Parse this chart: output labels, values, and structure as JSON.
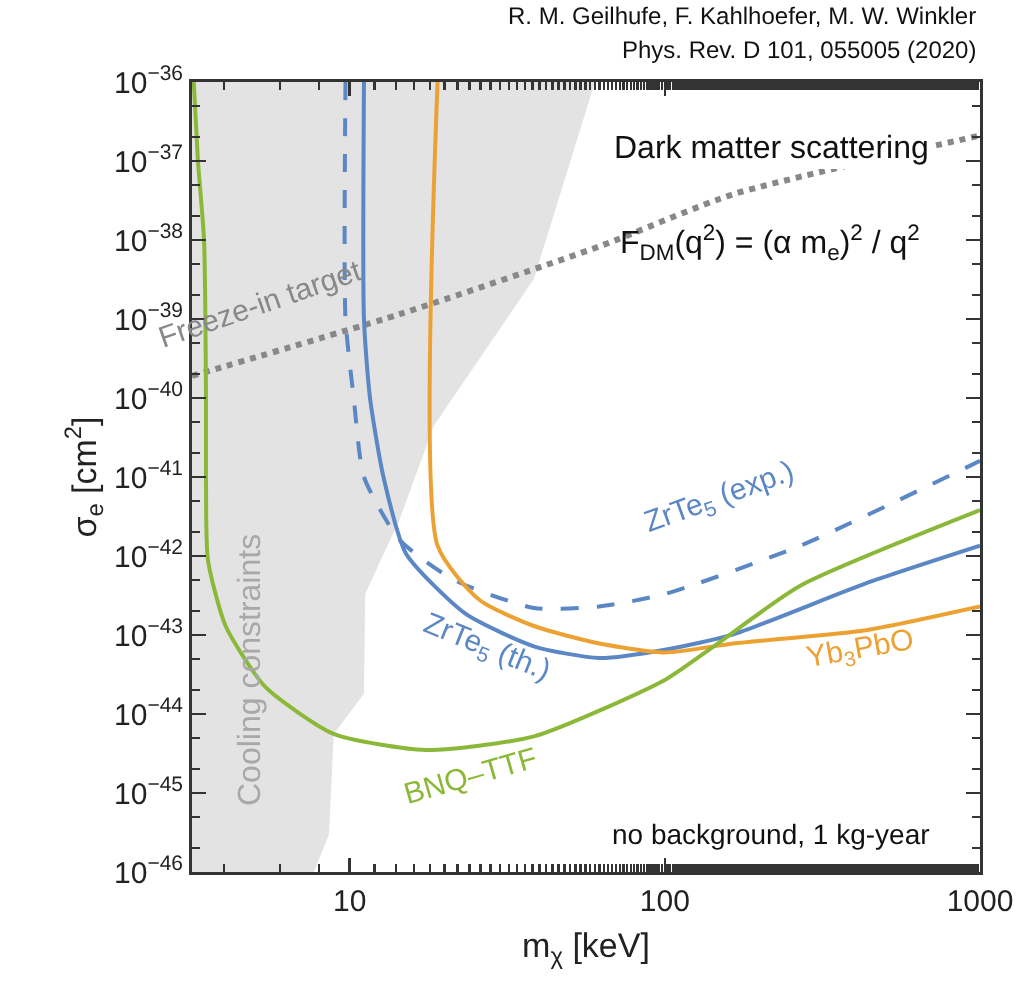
{
  "chart_data": {
    "type": "line",
    "xlabel": "m$_{χ}$ [keV]",
    "ylabel": "σ$_{e}$ [cm$^{2}$]",
    "annotations": [
      "R. M. Geilhufe, F. Kahlhoefer, M. W. Winkler",
      "Phys. Rev. D 101, 055005 (2020)",
      "Dark matter scattering",
      "F$_{DM}$(q$^{2}$) = (α m$_{e}$)$^{2}$ / q$^{2}$",
      "no background, 1 kg-year"
    ],
    "log": "xy",
    "grid": false,
    "legend": false,
    "marker": "none",
    "xlim": [
      3.16,
      1000
    ],
    "xticks": [
      10,
      100,
      1000
    ],
    "ylim": [
      1e-46,
      1e-36
    ],
    "yticks": [
      {
        "value": 1e-46,
        "label": "10$^{−46}$"
      },
      {
        "value": 1e-45,
        "label": "10$^{−45}$"
      },
      {
        "value": 1e-44,
        "label": "10$^{−44}$"
      },
      {
        "value": 1e-43,
        "label": "10$^{−43}$"
      },
      {
        "value": 1e-42,
        "label": "10$^{−42}$"
      },
      {
        "value": 1e-41,
        "label": "10$^{−41}$"
      },
      {
        "value": 1e-40,
        "label": "10$^{−40}$"
      },
      {
        "value": 1e-39,
        "label": "10$^{−39}$"
      },
      {
        "value": 1e-38,
        "label": "10$^{−38}$"
      },
      {
        "value": 1e-37,
        "label": "10$^{−37}$"
      },
      {
        "value": 1e-36,
        "label": "10$^{−36}$"
      }
    ],
    "series": [
      {
        "name": "Cooling constraints",
        "type": "area",
        "color": "#e3e3e3",
        "x": [
          60,
          38.4,
          18.5,
          14.4,
          11.2,
          11.1,
          8.9,
          8.6,
          7.7
        ],
        "values": [
          1e-36,
          3.2e-39,
          4.5e-41,
          2.9e-42,
          3.3e-43,
          1.8e-44,
          5.6e-45,
          3e-46,
          1e-46
        ]
      },
      {
        "name": "Freeze-in target",
        "color": "#888888",
        "line_style": "dotted",
        "x": [
          3.16,
          14.4,
          62,
          165,
          1000
        ],
        "values": [
          1.9e-40,
          1.15e-39,
          8.3e-39,
          3.8e-38,
          2.1e-37
        ]
      },
      {
        "name": "ZrTe$_{5}$ (exp.)",
        "color": "#5b87c5",
        "line_style": "dashed",
        "x": [
          9.7,
          9.7,
          10.3,
          11.1,
          14.4,
          21.4,
          38.4,
          62,
          100,
          269,
          1000
        ],
        "values": [
          1e-36,
          1e-39,
          1e-40,
          1e-41,
          1.6e-42,
          5e-43,
          2.2e-43,
          2.3e-43,
          3.3e-43,
          1.35e-42,
          1.6e-41
        ]
      },
      {
        "name": "ZrTe$_{5}$ (th.)",
        "color": "#5b87c5",
        "line_style": "solid",
        "x": [
          11.1,
          11.1,
          11.6,
          12.8,
          15.1,
          23.3,
          38.4,
          62,
          100,
          165,
          434,
          1000
        ],
        "values": [
          1e-36,
          1e-39,
          1e-40,
          1e-41,
          1.07e-42,
          1.86e-43,
          7.2e-44,
          5.1e-44,
          6.5e-44,
          1.02e-43,
          4.5e-43,
          1.35e-42
        ]
      },
      {
        "name": "Yb$_{3}$PbO",
        "color": "#eca133",
        "line_style": "solid",
        "x": [
          19,
          19,
          25.9,
          38.4,
          62,
          100,
          165,
          434,
          1000
        ],
        "values": [
          1e-36,
          1.35e-42,
          2.75e-43,
          1.3e-43,
          7.8e-44,
          6e-44,
          7.8e-44,
          1.15e-43,
          2.3e-43
        ]
      },
      {
        "name": "BNQ–TTF",
        "color": "#8cb83a",
        "line_style": "solid",
        "x": [
          3.2,
          3.3,
          3.45,
          3.5,
          3.5,
          3.55,
          4.04,
          5.4,
          8.9,
          17.4,
          38.4,
          100,
          143,
          269,
          1000
        ],
        "values": [
          1e-36,
          1e-37,
          1e-38,
          1e-40,
          1e-41,
          8.9e-43,
          1.3e-43,
          2.2e-44,
          5.6e-45,
          3.5e-45,
          5.2e-45,
          2.7e-44,
          7.2e-44,
          4.2e-43,
          3.8e-42
        ]
      }
    ]
  }
}
